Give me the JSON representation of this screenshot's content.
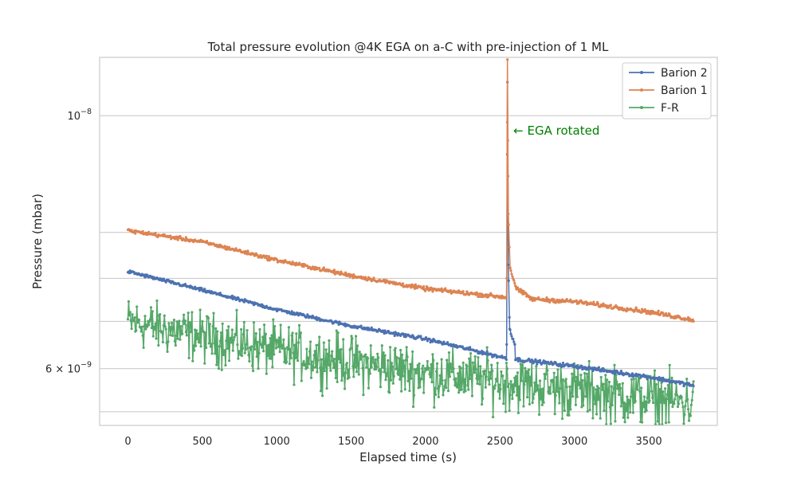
{
  "chart_data": {
    "type": "line",
    "title": "Total pressure evolution @4K EGA on a-C with pre-injection of 1 ML",
    "xlabel": "Elapsed time (s)",
    "ylabel": "Pressure (mbar)",
    "xlim": [
      -190,
      3960
    ],
    "ylim": [
      5.35e-09,
      1.125e-08
    ],
    "yscale": "log",
    "grid": true,
    "x_ticks": [
      0,
      500,
      1000,
      1500,
      2000,
      2500,
      3000,
      3500
    ],
    "x_tick_labels": [
      "0",
      "500",
      "1000",
      "1500",
      "2000",
      "2500",
      "3000",
      "3500"
    ],
    "y_major_ticks": [
      {
        "value": 1e-08,
        "base": "10",
        "exp": "−8",
        "mantissa": ""
      },
      {
        "value": 6e-09,
        "base": "10",
        "exp": "−9",
        "mantissa": "6 × "
      }
    ],
    "y_minor_gridlines": [
      5.5e-09,
      6.6e-09,
      7.2e-09,
      7.9e-09
    ],
    "legend_position": "top-right",
    "annotation": {
      "text": "← EGA rotated",
      "x": 2590,
      "y": 9.7e-09,
      "color": "#008000"
    },
    "x_range": [
      0,
      3800
    ],
    "n_points": 760,
    "spike_time": 2550,
    "series": [
      {
        "name": "Barion 2",
        "color": "#4c72b0",
        "baseline": [
          [
            0,
            7.3e-09
          ],
          [
            500,
            7.03e-09
          ],
          [
            1000,
            6.76e-09
          ],
          [
            1500,
            6.54e-09
          ],
          [
            2000,
            6.37e-09
          ],
          [
            2535,
            6.13e-09
          ],
          [
            3000,
            6.03e-09
          ],
          [
            3500,
            5.9e-09
          ],
          [
            3800,
            5.8e-09
          ]
        ],
        "spike": [
          [
            2545,
            6.3e-09
          ],
          [
            2550,
            1.07e-08
          ],
          [
            2556,
            7.4e-09
          ],
          [
            2565,
            6.5e-09
          ],
          [
            2600,
            6.3e-09
          ]
        ],
        "noise": 2e-11
      },
      {
        "name": "Barion 1",
        "color": "#dd8452",
        "baseline": [
          [
            0,
            7.93e-09
          ],
          [
            500,
            7.75e-09
          ],
          [
            1000,
            7.47e-09
          ],
          [
            1500,
            7.24e-09
          ],
          [
            2000,
            7.05e-09
          ],
          [
            2535,
            6.93e-09
          ],
          [
            3000,
            6.87e-09
          ],
          [
            3500,
            6.73e-09
          ],
          [
            3800,
            6.62e-09
          ]
        ],
        "spike": [
          [
            2545,
            7.2e-09
          ],
          [
            2550,
            1.12e-08
          ],
          [
            2556,
            8.2e-09
          ],
          [
            2568,
            7.35e-09
          ],
          [
            2610,
            7.05e-09
          ],
          [
            2700,
            6.93e-09
          ]
        ],
        "noise": 2.5e-11
      },
      {
        "name": "F-R",
        "color": "#55a868",
        "baseline": [
          [
            0,
            6.6e-09
          ],
          [
            500,
            6.4e-09
          ],
          [
            1000,
            6.23e-09
          ],
          [
            1500,
            6.08e-09
          ],
          [
            2000,
            5.95e-09
          ],
          [
            2500,
            5.85e-09
          ],
          [
            3000,
            5.75e-09
          ],
          [
            3500,
            5.65e-09
          ],
          [
            3800,
            5.6e-09
          ]
        ],
        "spike": [],
        "noise": 2.8e-10
      }
    ]
  }
}
